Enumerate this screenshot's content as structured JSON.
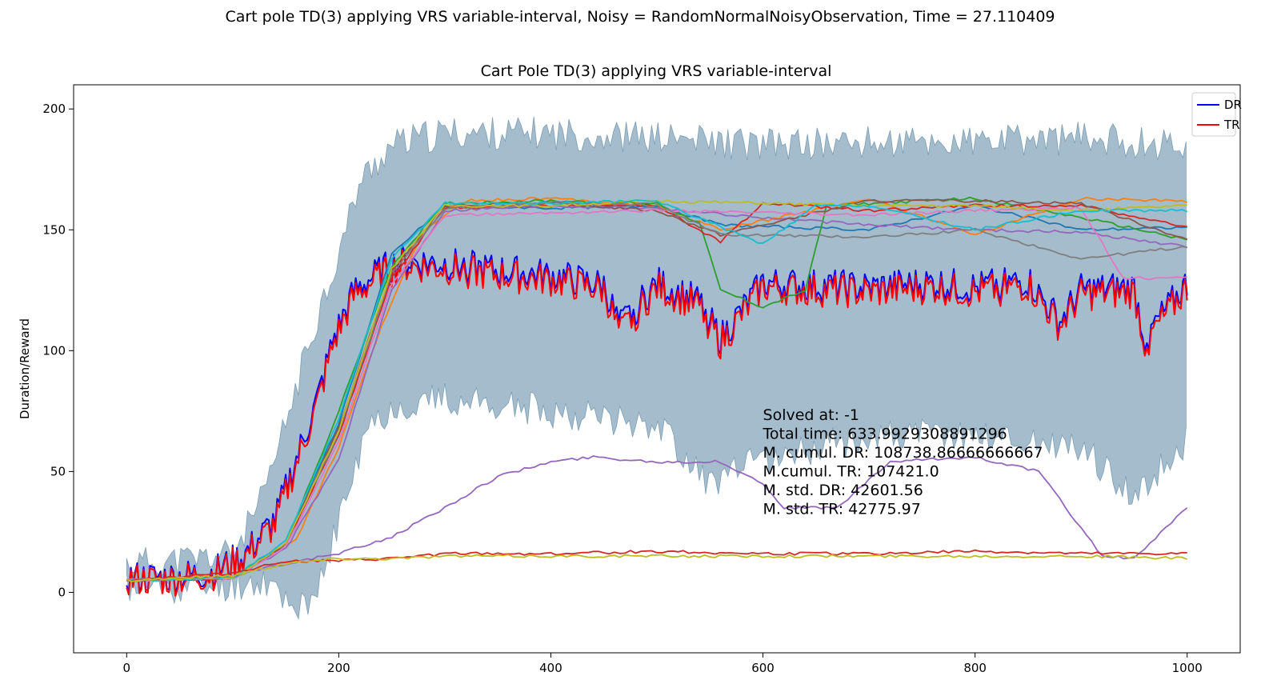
{
  "figure": {
    "suptitle": "Cart pole TD(3) applying VRS variable-interval, Noisy = RandomNormalNoisyObservation, Time = 27.110409"
  },
  "chart_data": {
    "type": "line",
    "title": "Cart Pole TD(3) applying VRS variable-interval",
    "xlabel": "",
    "ylabel": "Duration/Reward",
    "xlim": [
      -50,
      1050
    ],
    "ylim": [
      -25,
      210
    ],
    "xticks": [
      0,
      200,
      400,
      600,
      800,
      1000
    ],
    "yticks": [
      0,
      50,
      100,
      150,
      200
    ],
    "xtick_labels": [
      "0",
      "200",
      "400",
      "600",
      "800",
      "1000"
    ],
    "ytick_labels": [
      "0",
      "50",
      "100",
      "150",
      "200"
    ],
    "grid": false,
    "legend_position": "top-right",
    "legend": [
      {
        "label": "DR",
        "color": "#0000ff"
      },
      {
        "label": "TR",
        "color": "#ff0000"
      }
    ],
    "band": {
      "color": "#4a7a9a",
      "upper": [
        [
          0,
          12
        ],
        [
          50,
          13
        ],
        [
          100,
          16
        ],
        [
          130,
          40
        ],
        [
          160,
          85
        ],
        [
          180,
          115
        ],
        [
          200,
          140
        ],
        [
          220,
          170
        ],
        [
          250,
          185
        ],
        [
          300,
          190
        ],
        [
          400,
          190
        ],
        [
          500,
          188
        ],
        [
          600,
          185
        ],
        [
          700,
          186
        ],
        [
          800,
          186
        ],
        [
          900,
          188
        ],
        [
          1000,
          185
        ]
      ],
      "lower": [
        [
          0,
          2
        ],
        [
          50,
          2
        ],
        [
          100,
          3
        ],
        [
          130,
          5
        ],
        [
          160,
          -5
        ],
        [
          175,
          -8
        ],
        [
          200,
          30
        ],
        [
          230,
          70
        ],
        [
          260,
          78
        ],
        [
          300,
          80
        ],
        [
          400,
          75
        ],
        [
          500,
          70
        ],
        [
          550,
          45
        ],
        [
          600,
          55
        ],
        [
          650,
          60
        ],
        [
          700,
          65
        ],
        [
          800,
          65
        ],
        [
          900,
          60
        ],
        [
          950,
          40
        ],
        [
          1000,
          62
        ]
      ]
    },
    "series": [
      {
        "name": "DR",
        "color": "#0000ff",
        "values": [
          [
            0,
            6
          ],
          [
            40,
            6
          ],
          [
            80,
            8
          ],
          [
            110,
            15
          ],
          [
            140,
            30
          ],
          [
            160,
            55
          ],
          [
            180,
            80
          ],
          [
            195,
            105
          ],
          [
            215,
            125
          ],
          [
            240,
            133
          ],
          [
            260,
            137
          ],
          [
            300,
            136
          ],
          [
            350,
            133
          ],
          [
            400,
            131
          ],
          [
            450,
            127
          ],
          [
            465,
            110
          ],
          [
            500,
            128
          ],
          [
            540,
            120
          ],
          [
            560,
            105
          ],
          [
            600,
            128
          ],
          [
            640,
            127
          ],
          [
            700,
            126
          ],
          [
            760,
            128
          ],
          [
            800,
            126
          ],
          [
            850,
            129
          ],
          [
            880,
            112
          ],
          [
            900,
            125
          ],
          [
            950,
            126
          ],
          [
            960,
            105
          ],
          [
            1000,
            128
          ]
        ]
      },
      {
        "name": "TR",
        "color": "#ff0000",
        "values": [
          [
            0,
            5
          ],
          [
            40,
            5
          ],
          [
            80,
            7
          ],
          [
            110,
            14
          ],
          [
            140,
            28
          ],
          [
            160,
            53
          ],
          [
            180,
            78
          ],
          [
            195,
            103
          ],
          [
            215,
            123
          ],
          [
            240,
            131
          ],
          [
            260,
            135
          ],
          [
            300,
            134
          ],
          [
            350,
            131
          ],
          [
            400,
            129
          ],
          [
            450,
            125
          ],
          [
            465,
            107
          ],
          [
            500,
            126
          ],
          [
            540,
            118
          ],
          [
            560,
            103
          ],
          [
            600,
            126
          ],
          [
            640,
            125
          ],
          [
            700,
            124
          ],
          [
            760,
            126
          ],
          [
            800,
            124
          ],
          [
            850,
            127
          ],
          [
            880,
            110
          ],
          [
            900,
            123
          ],
          [
            950,
            124
          ],
          [
            960,
            103
          ],
          [
            1000,
            126
          ]
        ]
      },
      {
        "color": "#1f77b4",
        "values": [
          [
            0,
            5
          ],
          [
            100,
            6
          ],
          [
            150,
            20
          ],
          [
            200,
            70
          ],
          [
            250,
            140
          ],
          [
            300,
            160
          ],
          [
            400,
            159
          ],
          [
            500,
            160
          ],
          [
            560,
            152
          ],
          [
            700,
            150
          ],
          [
            800,
            160
          ],
          [
            900,
            150
          ],
          [
            1000,
            151
          ]
        ]
      },
      {
        "color": "#ff7f0e",
        "values": [
          [
            0,
            5
          ],
          [
            100,
            6
          ],
          [
            160,
            22
          ],
          [
            200,
            60
          ],
          [
            240,
            110
          ],
          [
            280,
            150
          ],
          [
            320,
            162
          ],
          [
            400,
            163
          ],
          [
            500,
            160
          ],
          [
            560,
            150
          ],
          [
            700,
            163
          ],
          [
            800,
            148
          ],
          [
            900,
            163
          ],
          [
            1000,
            162
          ]
        ]
      },
      {
        "color": "#2ca02c",
        "values": [
          [
            0,
            5
          ],
          [
            100,
            6
          ],
          [
            150,
            20
          ],
          [
            200,
            75
          ],
          [
            250,
            135
          ],
          [
            300,
            161
          ],
          [
            400,
            162
          ],
          [
            500,
            161
          ],
          [
            540,
            153
          ],
          [
            560,
            125
          ],
          [
            600,
            118
          ],
          [
            640,
            125
          ],
          [
            660,
            160
          ],
          [
            800,
            163
          ],
          [
            900,
            155
          ],
          [
            1000,
            146
          ]
        ]
      },
      {
        "color": "#d62728",
        "values": [
          [
            0,
            5
          ],
          [
            100,
            6
          ],
          [
            150,
            20
          ],
          [
            200,
            65
          ],
          [
            250,
            130
          ],
          [
            300,
            159
          ],
          [
            400,
            160
          ],
          [
            500,
            160
          ],
          [
            560,
            145
          ],
          [
            600,
            161
          ],
          [
            700,
            158
          ],
          [
            800,
            160
          ],
          [
            900,
            160
          ],
          [
            1000,
            151
          ]
        ]
      },
      {
        "color": "#9467bd",
        "values": [
          [
            0,
            5
          ],
          [
            100,
            6
          ],
          [
            150,
            18
          ],
          [
            200,
            55
          ],
          [
            250,
            125
          ],
          [
            300,
            158
          ],
          [
            400,
            160
          ],
          [
            500,
            159
          ],
          [
            600,
            155
          ],
          [
            700,
            152
          ],
          [
            800,
            150
          ],
          [
            900,
            149
          ],
          [
            1000,
            143
          ]
        ]
      },
      {
        "color": "#8c564b",
        "values": [
          [
            0,
            5
          ],
          [
            100,
            6
          ],
          [
            150,
            20
          ],
          [
            200,
            68
          ],
          [
            250,
            133
          ],
          [
            300,
            160
          ],
          [
            400,
            161
          ],
          [
            500,
            158
          ],
          [
            560,
            148
          ],
          [
            700,
            162
          ],
          [
            800,
            162
          ],
          [
            900,
            161
          ],
          [
            1000,
            146
          ]
        ]
      },
      {
        "color": "#e377c2",
        "values": [
          [
            0,
            5
          ],
          [
            100,
            6
          ],
          [
            150,
            19
          ],
          [
            200,
            62
          ],
          [
            250,
            128
          ],
          [
            300,
            156
          ],
          [
            400,
            157
          ],
          [
            500,
            158
          ],
          [
            600,
            157
          ],
          [
            700,
            156
          ],
          [
            800,
            158
          ],
          [
            900,
            159
          ],
          [
            940,
            130
          ],
          [
            1000,
            130
          ]
        ]
      },
      {
        "color": "#7f7f7f",
        "values": [
          [
            0,
            5
          ],
          [
            100,
            6
          ],
          [
            150,
            20
          ],
          [
            200,
            66
          ],
          [
            250,
            132
          ],
          [
            300,
            159
          ],
          [
            400,
            161
          ],
          [
            500,
            160
          ],
          [
            560,
            148
          ],
          [
            700,
            147
          ],
          [
            800,
            150
          ],
          [
            900,
            138
          ],
          [
            1000,
            143
          ]
        ]
      },
      {
        "color": "#bcbd22",
        "values": [
          [
            0,
            5
          ],
          [
            100,
            6
          ],
          [
            150,
            20
          ],
          [
            200,
            67
          ],
          [
            250,
            134
          ],
          [
            300,
            160
          ],
          [
            400,
            160
          ],
          [
            500,
            162
          ],
          [
            600,
            161
          ],
          [
            700,
            160
          ],
          [
            800,
            160
          ],
          [
            900,
            158
          ],
          [
            1000,
            160
          ]
        ]
      },
      {
        "color": "#17becf",
        "values": [
          [
            0,
            5
          ],
          [
            100,
            6
          ],
          [
            150,
            21
          ],
          [
            200,
            72
          ],
          [
            250,
            138
          ],
          [
            300,
            161
          ],
          [
            400,
            161
          ],
          [
            500,
            162
          ],
          [
            600,
            144
          ],
          [
            650,
            160
          ],
          [
            700,
            160
          ],
          [
            800,
            150
          ],
          [
            900,
            158
          ],
          [
            1000,
            158
          ]
        ]
      },
      {
        "color": "#9467bd",
        "values": [
          [
            0,
            5
          ],
          [
            100,
            7
          ],
          [
            150,
            12
          ],
          [
            200,
            16
          ],
          [
            250,
            23
          ],
          [
            300,
            35
          ],
          [
            350,
            48
          ],
          [
            400,
            54
          ],
          [
            440,
            56
          ],
          [
            500,
            54
          ],
          [
            560,
            54
          ],
          [
            600,
            45
          ],
          [
            620,
            35
          ],
          [
            670,
            35
          ],
          [
            720,
            54
          ],
          [
            800,
            56
          ],
          [
            860,
            50
          ],
          [
            920,
            15
          ],
          [
            950,
            14
          ],
          [
            1000,
            35
          ]
        ]
      },
      {
        "color": "#d62728",
        "values": [
          [
            0,
            5
          ],
          [
            100,
            8
          ],
          [
            150,
            13
          ],
          [
            200,
            13
          ],
          [
            250,
            14
          ],
          [
            300,
            16
          ],
          [
            400,
            16
          ],
          [
            500,
            17
          ],
          [
            600,
            16
          ],
          [
            700,
            16
          ],
          [
            800,
            17
          ],
          [
            900,
            16
          ],
          [
            1000,
            16
          ]
        ]
      },
      {
        "color": "#bcbd22",
        "values": [
          [
            0,
            5
          ],
          [
            100,
            7
          ],
          [
            150,
            12
          ],
          [
            200,
            14
          ],
          [
            250,
            14
          ],
          [
            300,
            15
          ],
          [
            400,
            15
          ],
          [
            500,
            15
          ],
          [
            600,
            15
          ],
          [
            700,
            15
          ],
          [
            800,
            15
          ],
          [
            900,
            15
          ],
          [
            1000,
            14
          ]
        ]
      }
    ],
    "annotations": [
      "Solved at: -1",
      "Total time: 633.9929308891296",
      "M. cumul. DR: 108738.86666666667",
      "M.cumul. TR: 107421.0",
      "M. std. DR: 42601.56",
      "M. std. TR: 42775.97"
    ]
  }
}
